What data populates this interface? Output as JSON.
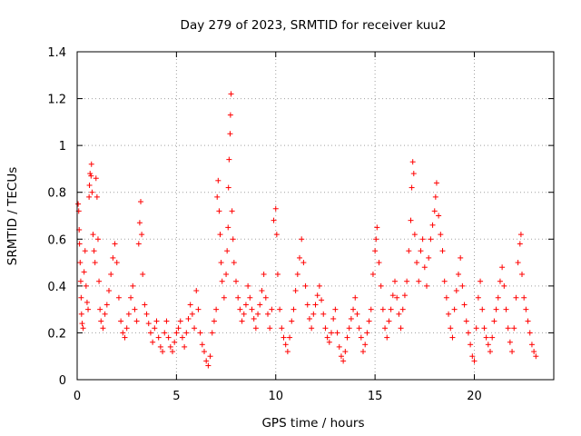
{
  "chart_data": {
    "type": "scatter",
    "title": "Day 279 of 2023, SRMTID for receiver kuu2",
    "xlabel": "GPS time / hours",
    "ylabel": "SRMTID / TECUs",
    "xlim": [
      0,
      24
    ],
    "ylim": [
      0,
      1.4
    ],
    "xticks": [
      0,
      5,
      10,
      15,
      20
    ],
    "xtick_labels": [
      "0",
      "5",
      "10",
      "15",
      "20"
    ],
    "yticks": [
      0,
      0.2,
      0.4,
      0.6,
      0.8,
      1.0,
      1.2,
      1.4
    ],
    "ytick_labels": [
      "0",
      "0.2",
      "0.4",
      "0.6",
      "0.8",
      "1",
      "1.2",
      "1.4"
    ],
    "grid": true,
    "marker": "+",
    "color": "#ff0000",
    "series": [
      {
        "name": "SRMTID",
        "points": [
          [
            0.05,
            0.75
          ],
          [
            0.08,
            0.72
          ],
          [
            0.1,
            0.64
          ],
          [
            0.12,
            0.58
          ],
          [
            0.15,
            0.5
          ],
          [
            0.18,
            0.42
          ],
          [
            0.2,
            0.35
          ],
          [
            0.22,
            0.28
          ],
          [
            0.25,
            0.24
          ],
          [
            0.3,
            0.22
          ],
          [
            0.35,
            0.46
          ],
          [
            0.4,
            0.55
          ],
          [
            0.45,
            0.4
          ],
          [
            0.5,
            0.33
          ],
          [
            0.55,
            0.3
          ],
          [
            0.6,
            0.78
          ],
          [
            0.62,
            0.83
          ],
          [
            0.65,
            0.88
          ],
          [
            0.7,
            0.87
          ],
          [
            0.72,
            0.92
          ],
          [
            0.75,
            0.8
          ],
          [
            0.8,
            0.62
          ],
          [
            0.85,
            0.55
          ],
          [
            0.9,
            0.5
          ],
          [
            0.95,
            0.86
          ],
          [
            1.0,
            0.78
          ],
          [
            1.05,
            0.6
          ],
          [
            1.1,
            0.42
          ],
          [
            1.15,
            0.3
          ],
          [
            1.2,
            0.25
          ],
          [
            1.3,
            0.22
          ],
          [
            1.4,
            0.28
          ],
          [
            1.5,
            0.32
          ],
          [
            1.6,
            0.38
          ],
          [
            1.7,
            0.45
          ],
          [
            1.8,
            0.52
          ],
          [
            1.9,
            0.58
          ],
          [
            2.0,
            0.5
          ],
          [
            2.1,
            0.35
          ],
          [
            2.2,
            0.25
          ],
          [
            2.3,
            0.2
          ],
          [
            2.4,
            0.18
          ],
          [
            2.5,
            0.22
          ],
          [
            2.6,
            0.28
          ],
          [
            2.7,
            0.35
          ],
          [
            2.8,
            0.4
          ],
          [
            2.9,
            0.3
          ],
          [
            3.0,
            0.25
          ],
          [
            3.1,
            0.58
          ],
          [
            3.15,
            0.67
          ],
          [
            3.2,
            0.76
          ],
          [
            3.25,
            0.62
          ],
          [
            3.3,
            0.45
          ],
          [
            3.4,
            0.32
          ],
          [
            3.5,
            0.28
          ],
          [
            3.6,
            0.24
          ],
          [
            3.7,
            0.2
          ],
          [
            3.8,
            0.16
          ],
          [
            3.9,
            0.22
          ],
          [
            4.0,
            0.25
          ],
          [
            4.1,
            0.18
          ],
          [
            4.2,
            0.14
          ],
          [
            4.3,
            0.12
          ],
          [
            4.4,
            0.2
          ],
          [
            4.5,
            0.25
          ],
          [
            4.6,
            0.18
          ],
          [
            4.7,
            0.14
          ],
          [
            4.8,
            0.12
          ],
          [
            4.9,
            0.16
          ],
          [
            5.0,
            0.2
          ],
          [
            5.1,
            0.22
          ],
          [
            5.2,
            0.25
          ],
          [
            5.3,
            0.18
          ],
          [
            5.4,
            0.14
          ],
          [
            5.5,
            0.2
          ],
          [
            5.6,
            0.26
          ],
          [
            5.7,
            0.32
          ],
          [
            5.8,
            0.28
          ],
          [
            5.9,
            0.22
          ],
          [
            6.0,
            0.38
          ],
          [
            6.1,
            0.3
          ],
          [
            6.2,
            0.2
          ],
          [
            6.3,
            0.15
          ],
          [
            6.4,
            0.12
          ],
          [
            6.5,
            0.08
          ],
          [
            6.6,
            0.06
          ],
          [
            6.7,
            0.1
          ],
          [
            6.8,
            0.2
          ],
          [
            6.9,
            0.25
          ],
          [
            7.0,
            0.3
          ],
          [
            7.05,
            0.78
          ],
          [
            7.1,
            0.85
          ],
          [
            7.15,
            0.72
          ],
          [
            7.2,
            0.62
          ],
          [
            7.25,
            0.5
          ],
          [
            7.3,
            0.42
          ],
          [
            7.4,
            0.35
          ],
          [
            7.5,
            0.45
          ],
          [
            7.55,
            0.55
          ],
          [
            7.6,
            0.65
          ],
          [
            7.62,
            0.82
          ],
          [
            7.65,
            0.94
          ],
          [
            7.7,
            1.05
          ],
          [
            7.72,
            1.13
          ],
          [
            7.75,
            1.22
          ],
          [
            7.8,
            0.72
          ],
          [
            7.85,
            0.6
          ],
          [
            7.9,
            0.5
          ],
          [
            8.0,
            0.42
          ],
          [
            8.1,
            0.35
          ],
          [
            8.2,
            0.3
          ],
          [
            8.3,
            0.25
          ],
          [
            8.4,
            0.28
          ],
          [
            8.5,
            0.32
          ],
          [
            8.6,
            0.4
          ],
          [
            8.7,
            0.35
          ],
          [
            8.8,
            0.3
          ],
          [
            8.9,
            0.26
          ],
          [
            9.0,
            0.22
          ],
          [
            9.1,
            0.28
          ],
          [
            9.2,
            0.32
          ],
          [
            9.3,
            0.38
          ],
          [
            9.4,
            0.45
          ],
          [
            9.5,
            0.35
          ],
          [
            9.6,
            0.28
          ],
          [
            9.7,
            0.22
          ],
          [
            9.8,
            0.3
          ],
          [
            9.9,
            0.68
          ],
          [
            10.0,
            0.73
          ],
          [
            10.05,
            0.62
          ],
          [
            10.1,
            0.45
          ],
          [
            10.2,
            0.3
          ],
          [
            10.3,
            0.22
          ],
          [
            10.4,
            0.18
          ],
          [
            10.5,
            0.15
          ],
          [
            10.6,
            0.12
          ],
          [
            10.7,
            0.18
          ],
          [
            10.8,
            0.25
          ],
          [
            10.9,
            0.3
          ],
          [
            11.0,
            0.38
          ],
          [
            11.1,
            0.45
          ],
          [
            11.2,
            0.52
          ],
          [
            11.3,
            0.6
          ],
          [
            11.4,
            0.5
          ],
          [
            11.5,
            0.4
          ],
          [
            11.6,
            0.32
          ],
          [
            11.7,
            0.26
          ],
          [
            11.8,
            0.22
          ],
          [
            11.9,
            0.28
          ],
          [
            12.0,
            0.32
          ],
          [
            12.1,
            0.36
          ],
          [
            12.2,
            0.4
          ],
          [
            12.3,
            0.34
          ],
          [
            12.4,
            0.28
          ],
          [
            12.5,
            0.22
          ],
          [
            12.6,
            0.18
          ],
          [
            12.7,
            0.16
          ],
          [
            12.8,
            0.2
          ],
          [
            12.9,
            0.26
          ],
          [
            13.0,
            0.3
          ],
          [
            13.1,
            0.2
          ],
          [
            13.2,
            0.14
          ],
          [
            13.3,
            0.1
          ],
          [
            13.4,
            0.08
          ],
          [
            13.5,
            0.12
          ],
          [
            13.6,
            0.18
          ],
          [
            13.7,
            0.22
          ],
          [
            13.8,
            0.26
          ],
          [
            13.9,
            0.3
          ],
          [
            14.0,
            0.35
          ],
          [
            14.1,
            0.28
          ],
          [
            14.2,
            0.22
          ],
          [
            14.3,
            0.18
          ],
          [
            14.4,
            0.12
          ],
          [
            14.5,
            0.15
          ],
          [
            14.6,
            0.2
          ],
          [
            14.7,
            0.25
          ],
          [
            14.8,
            0.3
          ],
          [
            14.9,
            0.45
          ],
          [
            15.0,
            0.55
          ],
          [
            15.05,
            0.6
          ],
          [
            15.1,
            0.65
          ],
          [
            15.2,
            0.5
          ],
          [
            15.3,
            0.4
          ],
          [
            15.4,
            0.3
          ],
          [
            15.5,
            0.22
          ],
          [
            15.6,
            0.18
          ],
          [
            15.7,
            0.25
          ],
          [
            15.8,
            0.3
          ],
          [
            15.9,
            0.36
          ],
          [
            16.0,
            0.42
          ],
          [
            16.1,
            0.35
          ],
          [
            16.2,
            0.28
          ],
          [
            16.3,
            0.22
          ],
          [
            16.4,
            0.3
          ],
          [
            16.5,
            0.36
          ],
          [
            16.6,
            0.42
          ],
          [
            16.7,
            0.55
          ],
          [
            16.8,
            0.68
          ],
          [
            16.85,
            0.82
          ],
          [
            16.9,
            0.93
          ],
          [
            16.95,
            0.88
          ],
          [
            17.0,
            0.62
          ],
          [
            17.1,
            0.5
          ],
          [
            17.2,
            0.42
          ],
          [
            17.3,
            0.55
          ],
          [
            17.4,
            0.6
          ],
          [
            17.5,
            0.48
          ],
          [
            17.6,
            0.4
          ],
          [
            17.7,
            0.52
          ],
          [
            17.8,
            0.6
          ],
          [
            17.9,
            0.66
          ],
          [
            18.0,
            0.72
          ],
          [
            18.05,
            0.78
          ],
          [
            18.1,
            0.84
          ],
          [
            18.2,
            0.7
          ],
          [
            18.3,
            0.62
          ],
          [
            18.4,
            0.55
          ],
          [
            18.5,
            0.42
          ],
          [
            18.6,
            0.35
          ],
          [
            18.7,
            0.28
          ],
          [
            18.8,
            0.22
          ],
          [
            18.9,
            0.18
          ],
          [
            19.0,
            0.3
          ],
          [
            19.1,
            0.38
          ],
          [
            19.2,
            0.45
          ],
          [
            19.3,
            0.52
          ],
          [
            19.4,
            0.4
          ],
          [
            19.5,
            0.32
          ],
          [
            19.6,
            0.25
          ],
          [
            19.7,
            0.2
          ],
          [
            19.8,
            0.15
          ],
          [
            19.9,
            0.1
          ],
          [
            20.0,
            0.08
          ],
          [
            20.1,
            0.22
          ],
          [
            20.2,
            0.35
          ],
          [
            20.3,
            0.42
          ],
          [
            20.4,
            0.3
          ],
          [
            20.5,
            0.22
          ],
          [
            20.6,
            0.18
          ],
          [
            20.7,
            0.15
          ],
          [
            20.8,
            0.12
          ],
          [
            20.9,
            0.18
          ],
          [
            21.0,
            0.25
          ],
          [
            21.1,
            0.3
          ],
          [
            21.2,
            0.35
          ],
          [
            21.3,
            0.42
          ],
          [
            21.4,
            0.48
          ],
          [
            21.5,
            0.4
          ],
          [
            21.6,
            0.3
          ],
          [
            21.7,
            0.22
          ],
          [
            21.8,
            0.16
          ],
          [
            21.9,
            0.12
          ],
          [
            22.0,
            0.22
          ],
          [
            22.1,
            0.35
          ],
          [
            22.2,
            0.5
          ],
          [
            22.3,
            0.58
          ],
          [
            22.35,
            0.62
          ],
          [
            22.4,
            0.45
          ],
          [
            22.5,
            0.35
          ],
          [
            22.6,
            0.3
          ],
          [
            22.7,
            0.25
          ],
          [
            22.8,
            0.2
          ],
          [
            22.9,
            0.15
          ],
          [
            23.0,
            0.12
          ],
          [
            23.1,
            0.1
          ]
        ]
      }
    ]
  }
}
